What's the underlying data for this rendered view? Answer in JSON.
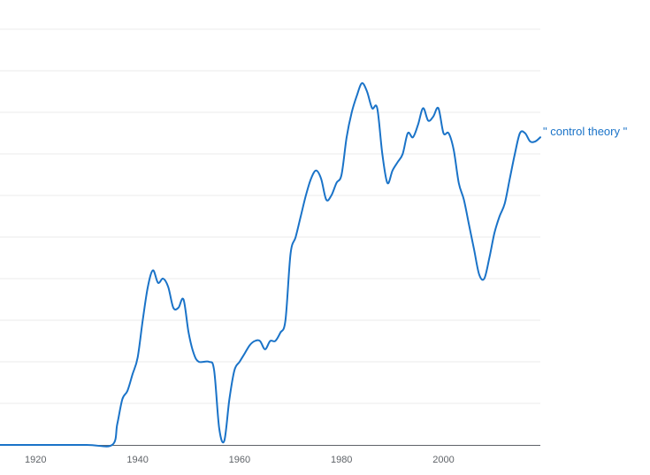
{
  "chart_data": {
    "type": "line",
    "title": "",
    "xlabel": "",
    "ylabel": "",
    "xlim": [
      1913,
      2019
    ],
    "ylim": [
      0,
      1
    ],
    "x_ticks": [
      "1920",
      "1940",
      "1960",
      "1980",
      "2000"
    ],
    "grid": true,
    "series": [
      {
        "name": "\" control theory \"",
        "color": "#1a73c8",
        "points": [
          [
            1913,
            0.0
          ],
          [
            1920,
            0.0
          ],
          [
            1930,
            0.0
          ],
          [
            1935,
            0.0
          ],
          [
            1936,
            0.05
          ],
          [
            1937,
            0.11
          ],
          [
            1938,
            0.13
          ],
          [
            1939,
            0.17
          ],
          [
            1940,
            0.21
          ],
          [
            1941,
            0.3
          ],
          [
            1942,
            0.38
          ],
          [
            1943,
            0.42
          ],
          [
            1944,
            0.39
          ],
          [
            1945,
            0.4
          ],
          [
            1946,
            0.38
          ],
          [
            1947,
            0.33
          ],
          [
            1948,
            0.33
          ],
          [
            1949,
            0.35
          ],
          [
            1950,
            0.27
          ],
          [
            1951,
            0.22
          ],
          [
            1952,
            0.2
          ],
          [
            1954,
            0.2
          ],
          [
            1955,
            0.18
          ],
          [
            1956,
            0.04
          ],
          [
            1957,
            0.01
          ],
          [
            1958,
            0.11
          ],
          [
            1959,
            0.18
          ],
          [
            1960,
            0.2
          ],
          [
            1961,
            0.22
          ],
          [
            1962,
            0.24
          ],
          [
            1963,
            0.25
          ],
          [
            1964,
            0.25
          ],
          [
            1965,
            0.23
          ],
          [
            1966,
            0.25
          ],
          [
            1967,
            0.25
          ],
          [
            1968,
            0.27
          ],
          [
            1969,
            0.3
          ],
          [
            1970,
            0.46
          ],
          [
            1971,
            0.5
          ],
          [
            1972,
            0.55
          ],
          [
            1973,
            0.6
          ],
          [
            1974,
            0.64
          ],
          [
            1975,
            0.66
          ],
          [
            1976,
            0.64
          ],
          [
            1977,
            0.59
          ],
          [
            1978,
            0.6
          ],
          [
            1979,
            0.63
          ],
          [
            1980,
            0.65
          ],
          [
            1981,
            0.74
          ],
          [
            1982,
            0.8
          ],
          [
            1983,
            0.84
          ],
          [
            1984,
            0.87
          ],
          [
            1985,
            0.85
          ],
          [
            1986,
            0.81
          ],
          [
            1987,
            0.81
          ],
          [
            1988,
            0.7
          ],
          [
            1989,
            0.63
          ],
          [
            1990,
            0.66
          ],
          [
            1991,
            0.68
          ],
          [
            1992,
            0.7
          ],
          [
            1993,
            0.75
          ],
          [
            1994,
            0.74
          ],
          [
            1995,
            0.77
          ],
          [
            1996,
            0.81
          ],
          [
            1997,
            0.78
          ],
          [
            1998,
            0.79
          ],
          [
            1999,
            0.81
          ],
          [
            2000,
            0.75
          ],
          [
            2001,
            0.75
          ],
          [
            2002,
            0.71
          ],
          [
            2003,
            0.63
          ],
          [
            2004,
            0.59
          ],
          [
            2005,
            0.53
          ],
          [
            2006,
            0.47
          ],
          [
            2007,
            0.41
          ],
          [
            2008,
            0.4
          ],
          [
            2009,
            0.45
          ],
          [
            2010,
            0.51
          ],
          [
            2011,
            0.55
          ],
          [
            2012,
            0.58
          ],
          [
            2013,
            0.64
          ],
          [
            2014,
            0.7
          ],
          [
            2015,
            0.75
          ],
          [
            2016,
            0.75
          ],
          [
            2017,
            0.73
          ],
          [
            2018,
            0.73
          ],
          [
            2019,
            0.74
          ]
        ]
      }
    ]
  }
}
